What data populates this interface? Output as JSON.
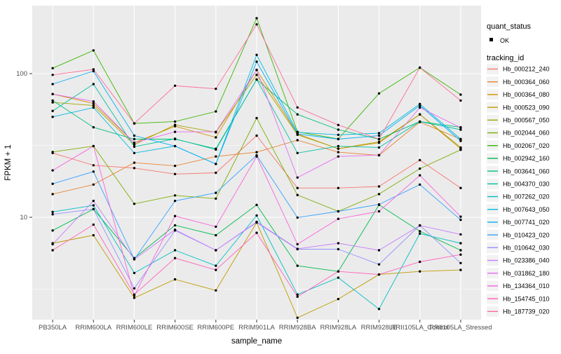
{
  "style": {
    "panel_bg": "#EBEBEB",
    "grid_color": "#FFFFFF",
    "point_color": "#000000",
    "legend_key_bg": "#F2F2F2",
    "tick_text_color": "#4D4D4D"
  },
  "legend": {
    "quant_status_title": "quant_status",
    "quant_status_entries": [
      {
        "label": "OK",
        "symbol": "point"
      }
    ],
    "tracking_id_title": "tracking_id"
  },
  "chart_data": {
    "type": "line",
    "title": "",
    "xlabel": "sample_name",
    "ylabel": "FPKM + 1",
    "y_scale": "log10",
    "y_tick_labels": [
      "100",
      "10"
    ],
    "y_major_ticks": [
      100,
      10
    ],
    "y_minor_gridlines": [
      31.62,
      3.162
    ],
    "ylim": [
      1.9,
      290
    ],
    "grid": true,
    "legend_position": "right",
    "categories": [
      "PB350LA",
      "RRIM600LA",
      "RRIM600LE",
      "RRIM600SE",
      "RRIM600PE",
      "RRIM901LA",
      "RRIM928BA",
      "RRIM928LA",
      "RRIM928LE",
      "RRII105LA_Control",
      "RRII105LA_Stressed"
    ],
    "series": [
      {
        "name": "Hb_000212_240",
        "color": "#F8766D",
        "values": [
          28,
          23,
          22,
          20,
          20.4,
          37,
          16,
          16,
          16.4,
          25,
          16
        ]
      },
      {
        "name": "Hb_000364_060",
        "color": "#EA8331",
        "values": [
          14.5,
          16.9,
          24,
          22.8,
          26.5,
          28.4,
          34.4,
          28.4,
          27,
          46,
          35
        ]
      },
      {
        "name": "Hb_000364_080",
        "color": "#D89000",
        "values": [
          72,
          62,
          33,
          43,
          36,
          106,
          38,
          30,
          33,
          52,
          30
        ]
      },
      {
        "name": "Hb_000523_090",
        "color": "#C09B00",
        "values": [
          6.6,
          7.5,
          2.75,
          3.7,
          3.1,
          9.2,
          2.0,
          2.7,
          4.0,
          4.2,
          4.3
        ]
      },
      {
        "name": "Hb_000567_050",
        "color": "#A3A500",
        "values": [
          63,
          60,
          32,
          44,
          39,
          98,
          37.5,
          30.1,
          33.5,
          52,
          30.6
        ]
      },
      {
        "name": "Hb_002044_060",
        "color": "#7CAE00",
        "values": [
          28.5,
          31.3,
          12.4,
          14.2,
          13.5,
          49,
          14.3,
          11,
          14.5,
          21.8,
          29.5
        ]
      },
      {
        "name": "Hb_002067_020",
        "color": "#39B600",
        "values": [
          109,
          145,
          45,
          46.4,
          54.5,
          243,
          39.3,
          35.1,
          72.8,
          110,
          71.4
        ]
      },
      {
        "name": "Hb_002942_160",
        "color": "#00BB4E",
        "values": [
          8.1,
          11.4,
          5.2,
          8.8,
          7.5,
          12.2,
          4.6,
          4.2,
          12.2,
          8.0,
          5.9
        ]
      },
      {
        "name": "Hb_003641_060",
        "color": "#00BF7D",
        "values": [
          65,
          42.3,
          35,
          35,
          30,
          91,
          52,
          40.7,
          35,
          46.4,
          42.3
        ]
      },
      {
        "name": "Hb_004370_030",
        "color": "#00C1A3",
        "values": [
          55,
          84.5,
          31,
          35.2,
          29.6,
          91,
          28,
          31.3,
          30.6,
          46.4,
          40.7
        ]
      },
      {
        "name": "Hb_007262_020",
        "color": "#00BFC4",
        "values": [
          10.9,
          12.1,
          4.1,
          5.9,
          4.6,
          10.3,
          2.9,
          3.8,
          2.3,
          7.7,
          6.6
        ]
      },
      {
        "name": "Hb_007643_050",
        "color": "#00BAE0",
        "values": [
          50,
          58,
          28,
          31.3,
          23.5,
          135,
          39,
          37.5,
          38.5,
          61.5,
          35
        ]
      },
      {
        "name": "Hb_007741_020",
        "color": "#00B0F6",
        "values": [
          84.5,
          104,
          37,
          31.3,
          23.5,
          121,
          38,
          35,
          37,
          60,
          34
        ]
      },
      {
        "name": "Hb_010423_020",
        "color": "#35A2FF",
        "values": [
          17.1,
          20.8,
          5.1,
          13,
          14.8,
          27,
          9.95,
          11,
          12.3,
          16.9,
          9.6
        ]
      },
      {
        "name": "Hb_010642_030",
        "color": "#9590FF",
        "values": [
          10.5,
          11.4,
          3.2,
          8.1,
          5.9,
          9.2,
          6.0,
          6.0,
          4.7,
          8.8,
          4.8
        ]
      },
      {
        "name": "Hb_023386_040",
        "color": "#C77CFF",
        "values": [
          6.5,
          13.0,
          5.1,
          8.2,
          5.9,
          9.3,
          6.04,
          6.6,
          5.9,
          8.77,
          7.6
        ]
      },
      {
        "name": "Hb_031862_180",
        "color": "#E76BF3",
        "values": [
          72,
          64,
          33,
          39.3,
          39.3,
          106,
          18.9,
          26.5,
          27.1,
          58,
          42
        ]
      },
      {
        "name": "Hb_134364_010",
        "color": "#FA62DB",
        "values": [
          21.2,
          31.3,
          2.85,
          10.2,
          8.6,
          26.5,
          6.5,
          9.76,
          11,
          19.6,
          10.1
        ]
      },
      {
        "name": "Hb_154745_010",
        "color": "#FF62BC",
        "values": [
          5.9,
          8.9,
          2.9,
          5.2,
          4.3,
          7.8,
          2.8,
          4.2,
          4.0,
          4.9,
          5.5
        ]
      },
      {
        "name": "Hb_187739_020",
        "color": "#FF6A98",
        "values": [
          98,
          107,
          45,
          82.3,
          78.4,
          220,
          58.1,
          43.9,
          35,
          110,
          65
        ]
      }
    ]
  }
}
